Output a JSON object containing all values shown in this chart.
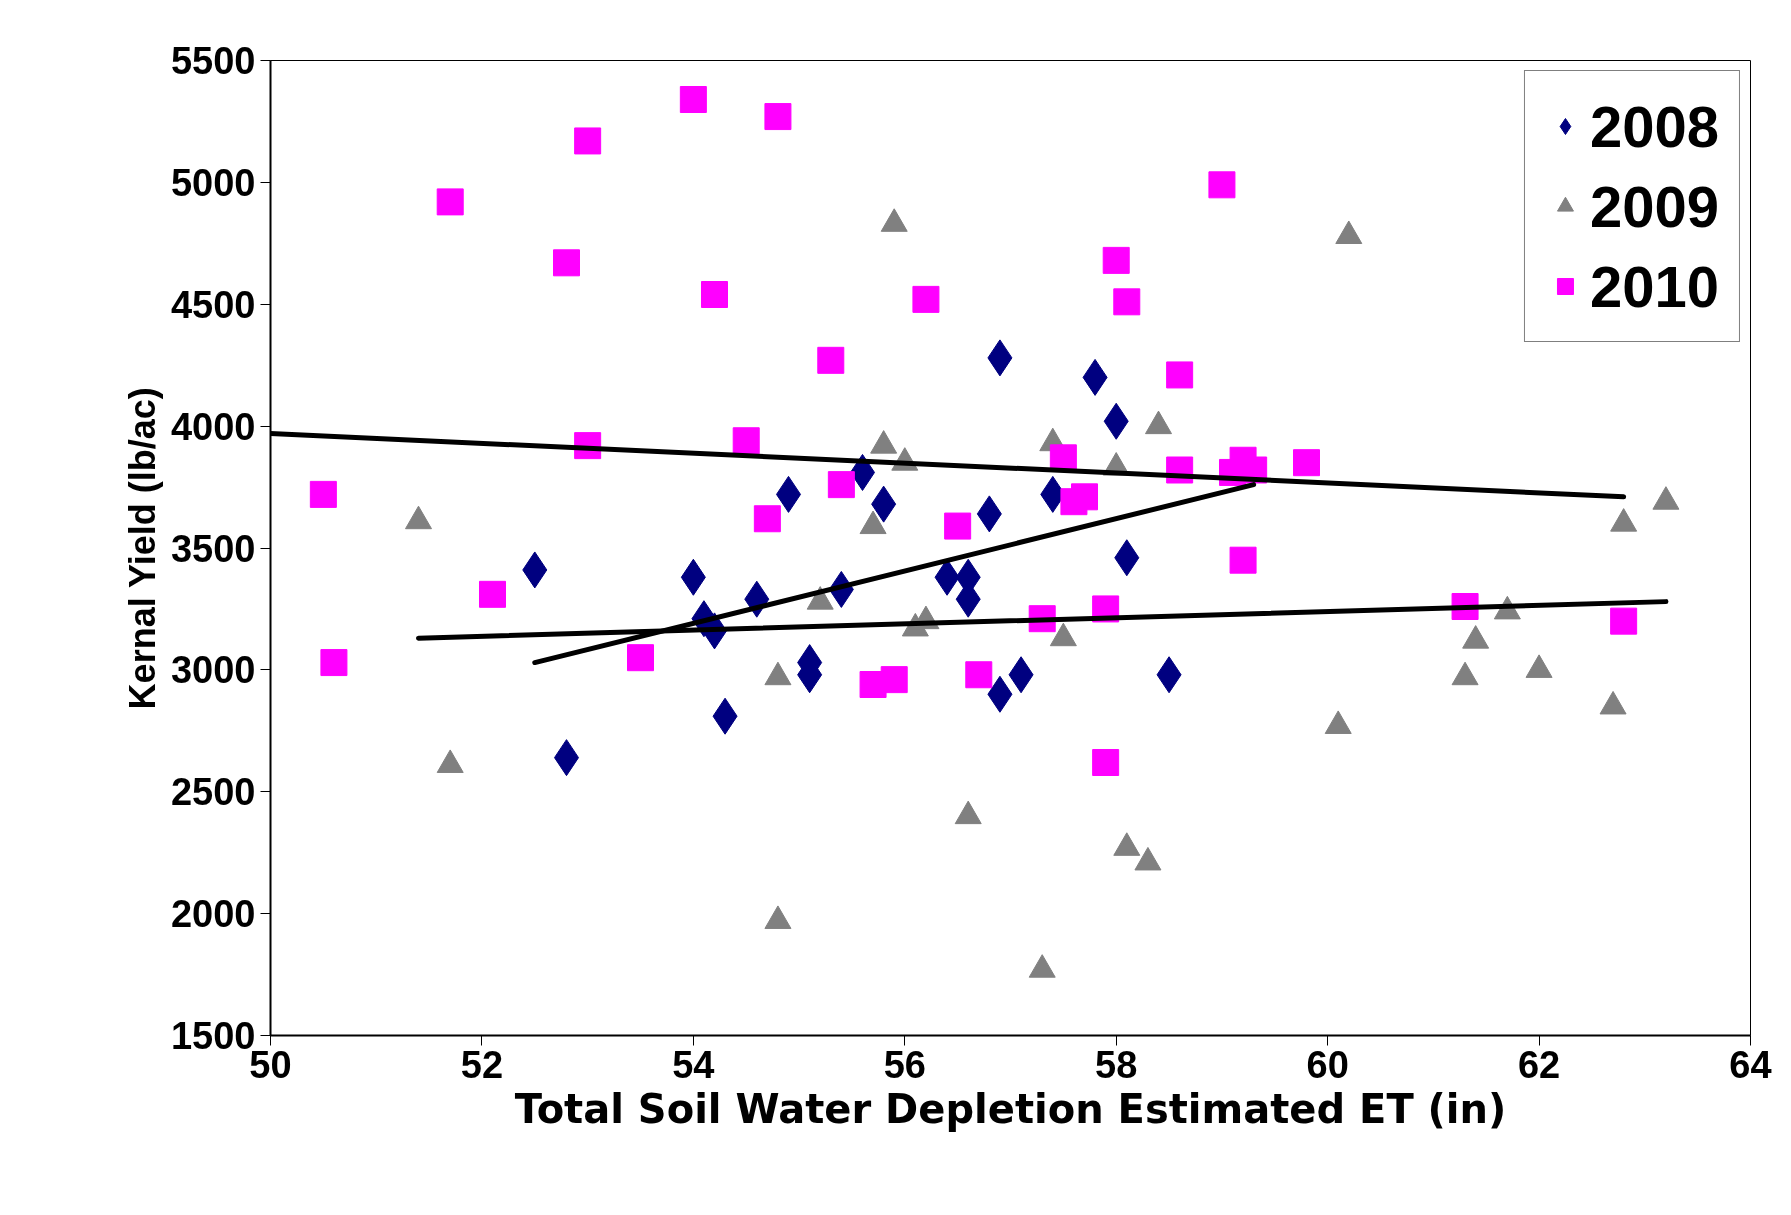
{
  "chart_data": {
    "type": "scatter",
    "xlabel": "Total Soil Water Depletion Estimated ET (in)",
    "ylabel": "Kernal Yield (lb/ac)",
    "xlim": [
      50,
      64
    ],
    "xticks": [
      50,
      52,
      54,
      56,
      58,
      60,
      62,
      64
    ],
    "ylim": [
      1500,
      5500
    ],
    "yticks": [
      1500,
      2000,
      2500,
      3000,
      3500,
      4000,
      4500,
      5000,
      5500
    ],
    "grid": false,
    "legend": "top right",
    "series": [
      {
        "name": "2008",
        "color": "#000080",
        "marker": "diamond",
        "x": [
          52.5,
          52.8,
          54.0,
          54.1,
          54.2,
          54.3,
          54.6,
          54.9,
          55.1,
          55.1,
          55.4,
          55.6,
          55.8,
          56.4,
          56.6,
          56.6,
          56.8,
          56.9,
          56.9,
          57.1,
          57.4,
          57.8,
          58.0,
          58.1,
          58.5
        ],
        "values": [
          3410,
          2640,
          3380,
          3210,
          3160,
          2810,
          3290,
          3720,
          3030,
          2980,
          3330,
          3810,
          3680,
          3380,
          3380,
          3290,
          3640,
          4280,
          2900,
          2980,
          3720,
          4200,
          4020,
          3460,
          2980
        ]
      },
      {
        "name": "2009",
        "color": "#808080",
        "marker": "triangle",
        "x": [
          51.4,
          51.7,
          54.8,
          54.8,
          55.2,
          55.7,
          55.8,
          55.9,
          56.0,
          56.1,
          56.2,
          56.6,
          57.3,
          57.4,
          57.5,
          58.0,
          58.1,
          58.3,
          58.4,
          60.1,
          60.2,
          61.3,
          61.4,
          61.7,
          62.0,
          62.7,
          62.8,
          63.2
        ],
        "values": [
          3610,
          2610,
          2970,
          1970,
          3280,
          3590,
          3920,
          4830,
          3850,
          3170,
          3200,
          2400,
          1770,
          3930,
          3130,
          3830,
          2270,
          2210,
          4000,
          2770,
          4780,
          2970,
          3120,
          3240,
          3000,
          2850,
          3600,
          3690
        ]
      },
      {
        "name": "2010",
        "color": "#ff00ff",
        "marker": "square",
        "x": [
          50.5,
          50.6,
          51.7,
          52.1,
          52.8,
          53.0,
          53.0,
          53.5,
          54.0,
          54.2,
          54.5,
          54.7,
          54.8,
          55.3,
          55.4,
          55.7,
          55.9,
          56.2,
          56.5,
          56.7,
          57.3,
          57.5,
          57.6,
          57.7,
          57.9,
          57.9,
          58.0,
          58.1,
          58.6,
          58.6,
          59.0,
          59.1,
          59.2,
          59.2,
          59.3,
          59.8,
          61.3,
          62.8
        ],
        "values": [
          3720,
          3030,
          4920,
          3310,
          4670,
          5170,
          3920,
          3050,
          5340,
          4540,
          3940,
          3620,
          5270,
          4270,
          3760,
          2940,
          2960,
          4520,
          3590,
          2980,
          3210,
          3870,
          3690,
          3710,
          3250,
          2620,
          4680,
          4510,
          4210,
          3820,
          4990,
          3810,
          3450,
          3860,
          3820,
          3850,
          3260,
          3200
        ]
      },
      {
        "type": "line",
        "color": "#000000",
        "x": [
          52.5,
          59.3
        ],
        "values": [
          3030,
          3760
        ]
      },
      {
        "type": "line",
        "color": "#000000",
        "x": [
          51.4,
          63.2
        ],
        "values": [
          3130,
          3280
        ]
      },
      {
        "type": "line",
        "color": "#000000",
        "x": [
          50.0,
          62.8
        ],
        "values": [
          3970,
          3710
        ]
      }
    ]
  }
}
